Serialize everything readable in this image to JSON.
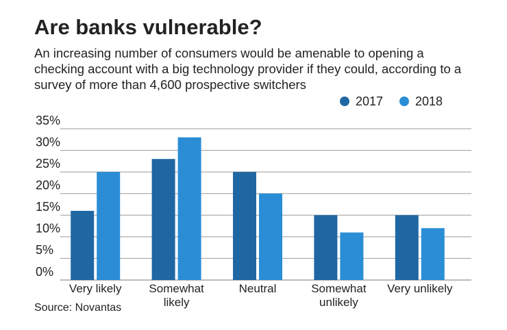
{
  "chart_data": {
    "type": "bar",
    "title": "Are banks vulnerable?",
    "subtitle": "An increasing number of consumers would be amenable to opening a checking account with a big technology provider if they could, according to a survey of more than 4,600 prospective switchers",
    "source": "Source: Novantas",
    "categories": [
      "Very likely",
      "Somewhat likely",
      "Neutral",
      "Somewhat unlikely",
      "Very unlikely"
    ],
    "series": [
      {
        "name": "2017",
        "color": "#1f67a3",
        "values": [
          16,
          28,
          25,
          15,
          15
        ]
      },
      {
        "name": "2018",
        "color": "#2a8dd6",
        "values": [
          25,
          33,
          20,
          11,
          12
        ]
      }
    ],
    "ylim": [
      0,
      35
    ],
    "yticks": [
      {
        "value": 0,
        "label": "0%"
      },
      {
        "value": 5,
        "label": "5%"
      },
      {
        "value": 10,
        "label": "10%"
      },
      {
        "value": 15,
        "label": "15%"
      },
      {
        "value": 20,
        "label": "20%"
      },
      {
        "value": 25,
        "label": "25%"
      },
      {
        "value": 30,
        "label": "30%"
      },
      {
        "value": 35,
        "label": "35%"
      }
    ],
    "grid": true,
    "legend": "top-right"
  }
}
